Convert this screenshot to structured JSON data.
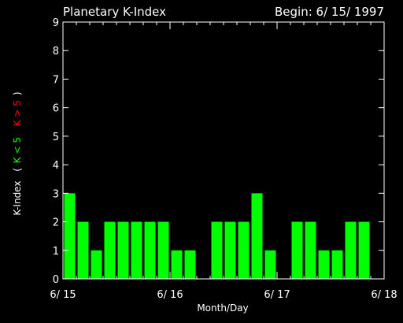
{
  "chart_data": {
    "type": "bar",
    "title": "Planetary K-Index",
    "begin_label": "Begin: 6/ 15/ 1997",
    "xlabel": "Month/Day",
    "ylabel_parts": {
      "main": "K-Index",
      "open": "(",
      "low": "K < 5",
      "high": "K > 5",
      "close": ")"
    },
    "ylim": [
      0,
      9
    ],
    "yticks": [
      "0",
      "1",
      "2",
      "3",
      "4",
      "5",
      "6",
      "7",
      "8",
      "9"
    ],
    "xlim_days": [
      0,
      3
    ],
    "xtick_labels": [
      "6/ 15",
      "6/ 16",
      "6/ 17",
      "6/ 18"
    ],
    "bars_per_day": 8,
    "values": [
      3,
      2,
      1,
      2,
      2,
      2,
      2,
      2,
      1,
      1,
      0,
      2,
      2,
      2,
      3,
      1,
      0,
      2,
      2,
      1,
      1,
      2,
      2,
      0
    ],
    "colors": {
      "low": "#00ff00",
      "high": "#ff0000",
      "axis": "#ffffff",
      "background": "#000000"
    },
    "grid": false
  }
}
